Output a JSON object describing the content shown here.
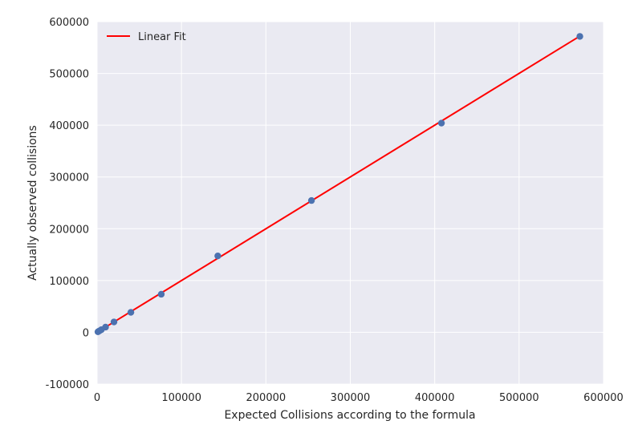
{
  "chart_data": {
    "type": "scatter",
    "title": "",
    "xlabel": "Expected Collisions according to the formula",
    "ylabel": "Actually observed collisions",
    "xlim": [
      0,
      600000
    ],
    "ylim": [
      -100000,
      600000
    ],
    "x_ticks": [
      0,
      100000,
      200000,
      300000,
      400000,
      500000,
      600000
    ],
    "y_ticks": [
      -100000,
      0,
      100000,
      200000,
      300000,
      400000,
      500000,
      600000
    ],
    "grid": true,
    "legend_position": "top-left",
    "colors": {
      "background": "#eaeaf2",
      "grid": "#ffffff",
      "points": "#4c72b0",
      "fit_line": "#ff0000"
    },
    "series": [
      {
        "kind": "scatter",
        "x": [
          1000,
          2500,
          5000,
          10000,
          20000,
          40000,
          76000,
          143000,
          254000,
          408000,
          572000
        ],
        "y": [
          1000,
          2500,
          5000,
          10000,
          20000,
          38500,
          73500,
          147500,
          254500,
          404000,
          571500
        ]
      },
      {
        "kind": "line",
        "name": "Linear Fit",
        "x": [
          0,
          572000
        ],
        "y": [
          0,
          572000
        ]
      }
    ]
  }
}
